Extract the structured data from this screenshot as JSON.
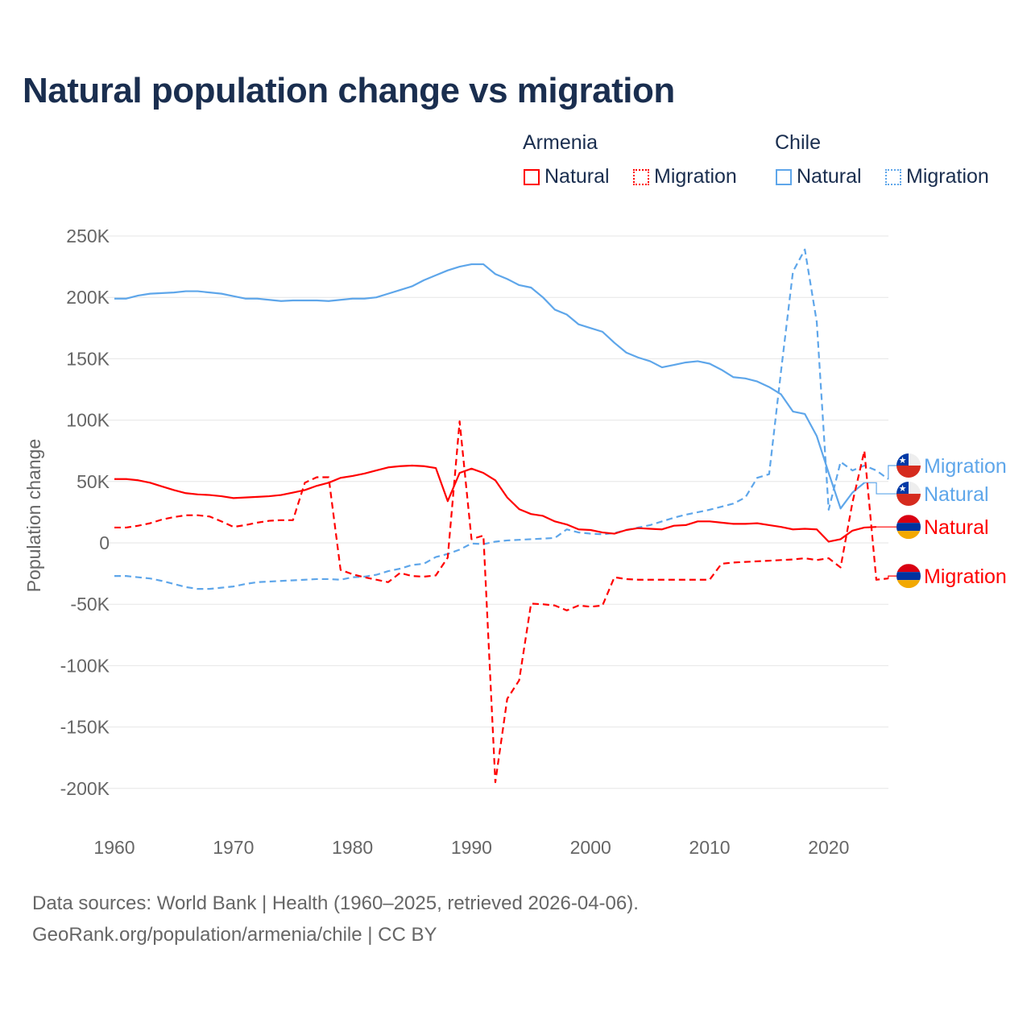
{
  "title": "Natural population change vs migration",
  "legend": {
    "groups": [
      {
        "name": "Armenia",
        "color": "#ff0000",
        "items": [
          {
            "label": "Natural",
            "style": "solid"
          },
          {
            "label": "Migration",
            "style": "dotted"
          }
        ]
      },
      {
        "name": "Chile",
        "color": "#5ea6ea",
        "items": [
          {
            "label": "Natural",
            "style": "solid"
          },
          {
            "label": "Migration",
            "style": "dotted"
          }
        ]
      }
    ]
  },
  "footer": {
    "line1": "Data sources: World Bank | Health (1960–2025, retrieved 2026-04-06).",
    "line2": "GeoRank.org/population/armenia/chile | CC BY"
  },
  "chart_data": {
    "type": "line",
    "title": "Natural population change vs migration",
    "xlabel": "",
    "ylabel": "Population change",
    "xlim": [
      1960,
      2025
    ],
    "ylim": [
      -200000,
      250000
    ],
    "xticks": [
      1960,
      1970,
      1980,
      1990,
      2000,
      2010,
      2020
    ],
    "xtick_labels": [
      "1960",
      "1970",
      "1980",
      "1990",
      "2000",
      "2010",
      "2020"
    ],
    "yticks": [
      250000,
      200000,
      150000,
      100000,
      50000,
      0,
      -50000,
      -100000,
      -150000,
      -200000
    ],
    "ytick_labels": [
      "250K",
      "200K",
      "150K",
      "100K",
      "50K",
      "0",
      "-50K",
      "-100K",
      "-150K",
      "-200K"
    ],
    "grid": true,
    "legend_position": "top-right",
    "series": [
      {
        "name": "Chile Migration",
        "country": "Chile",
        "end_label": "Migration",
        "color": "#5ea6ea",
        "dash": true,
        "start": 1960,
        "label_value": 63000,
        "values": [
          -27,
          -27,
          -28,
          -29,
          -31,
          -33.5,
          -36,
          -37.5,
          -37.5,
          -36.5,
          -35.5,
          -33.5,
          -32,
          -31.5,
          -31,
          -30.5,
          -30,
          -29.5,
          -29.5,
          -30,
          -28,
          -27.5,
          -26,
          -23,
          -21,
          -18,
          -17,
          -11.5,
          -9,
          -5.5,
          -0.5,
          -1,
          1,
          2,
          2.5,
          3,
          3.5,
          4,
          11,
          8.5,
          7.5,
          7,
          8,
          10.5,
          12.5,
          14.5,
          17.5,
          20.5,
          23,
          25,
          27,
          29.5,
          32,
          37,
          53,
          56,
          140,
          221,
          239,
          180,
          27,
          66,
          59,
          63,
          59,
          52
        ]
      },
      {
        "name": "Chile Natural",
        "country": "Chile",
        "end_label": "Natural",
        "color": "#5ea6ea",
        "dash": false,
        "start": 1960,
        "label_value": 40000,
        "values": [
          199,
          199,
          201.5,
          203,
          203.5,
          204,
          205,
          205,
          204,
          203,
          201,
          199,
          199,
          198,
          197,
          197.5,
          197.5,
          197.5,
          197,
          198,
          199,
          199,
          200,
          203,
          206,
          209,
          214,
          218,
          222,
          225,
          227,
          227,
          219,
          215,
          210,
          208,
          200,
          190,
          186,
          178,
          175,
          172,
          163,
          155,
          151,
          148,
          143,
          145,
          147,
          148,
          146,
          141,
          135,
          134,
          131.5,
          127,
          121,
          107,
          105,
          87,
          57,
          28,
          41,
          49
        ]
      },
      {
        "name": "Armenia Natural",
        "country": "Armenia",
        "end_label": "Natural",
        "color": "#ff0000",
        "dash": false,
        "start": 1960,
        "label_value": 13000,
        "values": [
          52,
          52,
          51,
          49,
          46,
          43,
          40.5,
          39.5,
          39,
          38,
          36.5,
          37,
          37.5,
          38,
          39,
          41,
          43,
          46.5,
          49,
          53,
          54.5,
          56.5,
          59,
          61.5,
          62.5,
          63,
          62.5,
          61,
          34,
          57,
          60.5,
          57,
          51,
          37,
          27.5,
          23.5,
          22,
          17.5,
          15,
          11,
          10.5,
          8.5,
          7.5,
          10.5,
          12,
          11.5,
          11,
          14,
          14.5,
          17.5,
          17.5,
          16.5,
          15.5,
          15.5,
          16,
          14.5,
          13,
          11,
          11.5,
          11,
          1,
          3,
          10,
          12.5,
          13
        ]
      },
      {
        "name": "Armenia Migration",
        "country": "Armenia",
        "end_label": "Migration",
        "color": "#ff0000",
        "dash": true,
        "start": 1960,
        "label_value": -27000,
        "values": [
          12.5,
          12.5,
          14,
          16,
          19,
          21,
          22.5,
          22.5,
          21.5,
          17.5,
          13,
          14.5,
          16.5,
          18,
          18.5,
          18.5,
          49,
          53.5,
          53.5,
          -22,
          -25.5,
          -28,
          -30,
          -32,
          -24.5,
          -27,
          -27.5,
          -26.5,
          -12,
          99,
          3,
          6,
          -195,
          -127,
          -112,
          -49.5,
          -50,
          -51,
          -55,
          -51,
          -52,
          -51,
          -28,
          -29.5,
          -30,
          -30,
          -30,
          -30,
          -30,
          -30,
          -30,
          -17,
          -16,
          -15.5,
          -15,
          -14.5,
          -14,
          -13.5,
          -12.5,
          -14,
          -12.5,
          -20,
          33,
          75,
          -30,
          -29
        ]
      }
    ],
    "value_unit": "thousands"
  }
}
